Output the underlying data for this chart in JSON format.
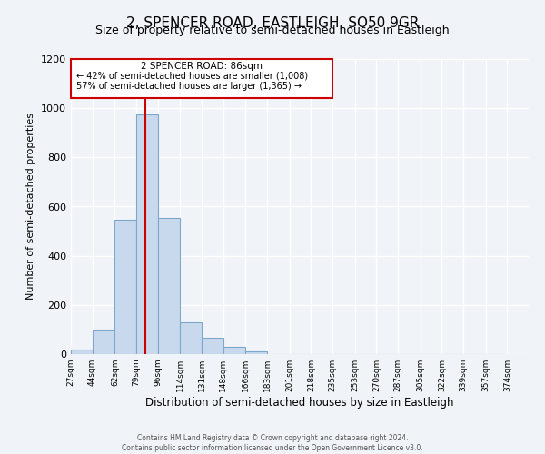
{
  "title": "2, SPENCER ROAD, EASTLEIGH, SO50 9GR",
  "subtitle": "Size of property relative to semi-detached houses in Eastleigh",
  "xlabel": "Distribution of semi-detached houses by size in Eastleigh",
  "ylabel": "Number of semi-detached properties",
  "bin_labels": [
    "27sqm",
    "44sqm",
    "62sqm",
    "79sqm",
    "96sqm",
    "114sqm",
    "131sqm",
    "148sqm",
    "166sqm",
    "183sqm",
    "201sqm",
    "218sqm",
    "235sqm",
    "253sqm",
    "270sqm",
    "287sqm",
    "305sqm",
    "322sqm",
    "339sqm",
    "357sqm",
    "374sqm"
  ],
  "bin_edges": [
    27,
    44,
    62,
    79,
    96,
    114,
    131,
    148,
    166,
    183,
    201,
    218,
    235,
    253,
    270,
    287,
    305,
    322,
    339,
    357,
    374
  ],
  "bar_heights": [
    20,
    100,
    545,
    975,
    555,
    130,
    65,
    30,
    10,
    0,
    0,
    0,
    0,
    0,
    0,
    0,
    0,
    0,
    0,
    0
  ],
  "bar_color": "#c9d9ed",
  "bar_edge_color": "#7da8cc",
  "property_value": 86,
  "vline_color": "#cc0000",
  "annotation_text_line1": "2 SPENCER ROAD: 86sqm",
  "annotation_text_line2": "← 42% of semi-detached houses are smaller (1,008)",
  "annotation_text_line3": "57% of semi-detached houses are larger (1,365) →",
  "annotation_box_color": "#cc0000",
  "ylim": [
    0,
    1200
  ],
  "yticks": [
    0,
    200,
    400,
    600,
    800,
    1000,
    1200
  ],
  "footer_line1": "Contains HM Land Registry data © Crown copyright and database right 2024.",
  "footer_line2": "Contains public sector information licensed under the Open Government Licence v3.0.",
  "bg_color": "#f0f4f8",
  "grid_color": "#ffffff",
  "title_fontsize": 11,
  "subtitle_fontsize": 9
}
